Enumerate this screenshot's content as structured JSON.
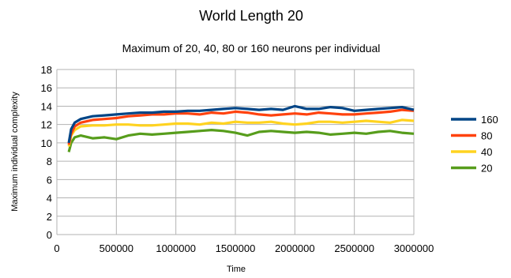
{
  "chart_data": {
    "type": "line",
    "title": "World Length 20",
    "subtitle": "Maximum of 20, 40, 80 or 160 neurons per individual",
    "xlabel": "Time",
    "ylabel": "Maximum individual complexity",
    "xlim": [
      0,
      3000000
    ],
    "ylim": [
      0,
      18
    ],
    "x_ticks": [
      0,
      500000,
      1000000,
      1500000,
      2000000,
      2500000,
      3000000
    ],
    "y_ticks": [
      0,
      2,
      4,
      6,
      8,
      10,
      12,
      14,
      16,
      18
    ],
    "grid": true,
    "legend_position": "right",
    "x": [
      100000,
      120000,
      150000,
      200000,
      300000,
      400000,
      500000,
      600000,
      700000,
      800000,
      900000,
      1000000,
      1100000,
      1200000,
      1300000,
      1400000,
      1500000,
      1600000,
      1700000,
      1800000,
      1900000,
      2000000,
      2100000,
      2200000,
      2300000,
      2400000,
      2500000,
      2600000,
      2700000,
      2800000,
      2900000,
      3000000
    ],
    "series": [
      {
        "name": "160",
        "color": "#004586",
        "values": [
          10.0,
          11.5,
          12.2,
          12.6,
          12.9,
          13.0,
          13.1,
          13.2,
          13.3,
          13.3,
          13.4,
          13.4,
          13.5,
          13.5,
          13.6,
          13.7,
          13.8,
          13.7,
          13.6,
          13.7,
          13.6,
          14.0,
          13.7,
          13.7,
          13.9,
          13.8,
          13.5,
          13.6,
          13.7,
          13.8,
          13.9,
          13.6
        ]
      },
      {
        "name": "80",
        "color": "#ff420e",
        "values": [
          9.8,
          11.0,
          11.8,
          12.2,
          12.5,
          12.6,
          12.7,
          12.9,
          13.0,
          13.1,
          13.1,
          13.2,
          13.2,
          13.1,
          13.3,
          13.2,
          13.4,
          13.3,
          13.1,
          13.0,
          13.1,
          13.2,
          13.1,
          13.3,
          13.2,
          13.1,
          13.1,
          13.2,
          13.3,
          13.4,
          13.6,
          13.5
        ]
      },
      {
        "name": "40",
        "color": "#ffd320",
        "values": [
          9.6,
          10.8,
          11.4,
          11.8,
          11.9,
          11.9,
          12.0,
          12.0,
          11.9,
          11.9,
          12.0,
          12.1,
          12.1,
          12.0,
          12.2,
          12.1,
          12.3,
          12.2,
          12.2,
          12.3,
          12.1,
          12.0,
          12.1,
          12.3,
          12.3,
          12.2,
          12.3,
          12.4,
          12.3,
          12.2,
          12.5,
          12.4
        ]
      },
      {
        "name": "20",
        "color": "#579d1c",
        "values": [
          9.0,
          10.0,
          10.6,
          10.8,
          10.5,
          10.6,
          10.4,
          10.8,
          11.0,
          10.9,
          11.0,
          11.1,
          11.2,
          11.3,
          11.4,
          11.3,
          11.1,
          10.8,
          11.2,
          11.3,
          11.2,
          11.1,
          11.2,
          11.1,
          10.9,
          11.0,
          11.1,
          11.0,
          11.2,
          11.3,
          11.1,
          11.0
        ]
      }
    ]
  }
}
